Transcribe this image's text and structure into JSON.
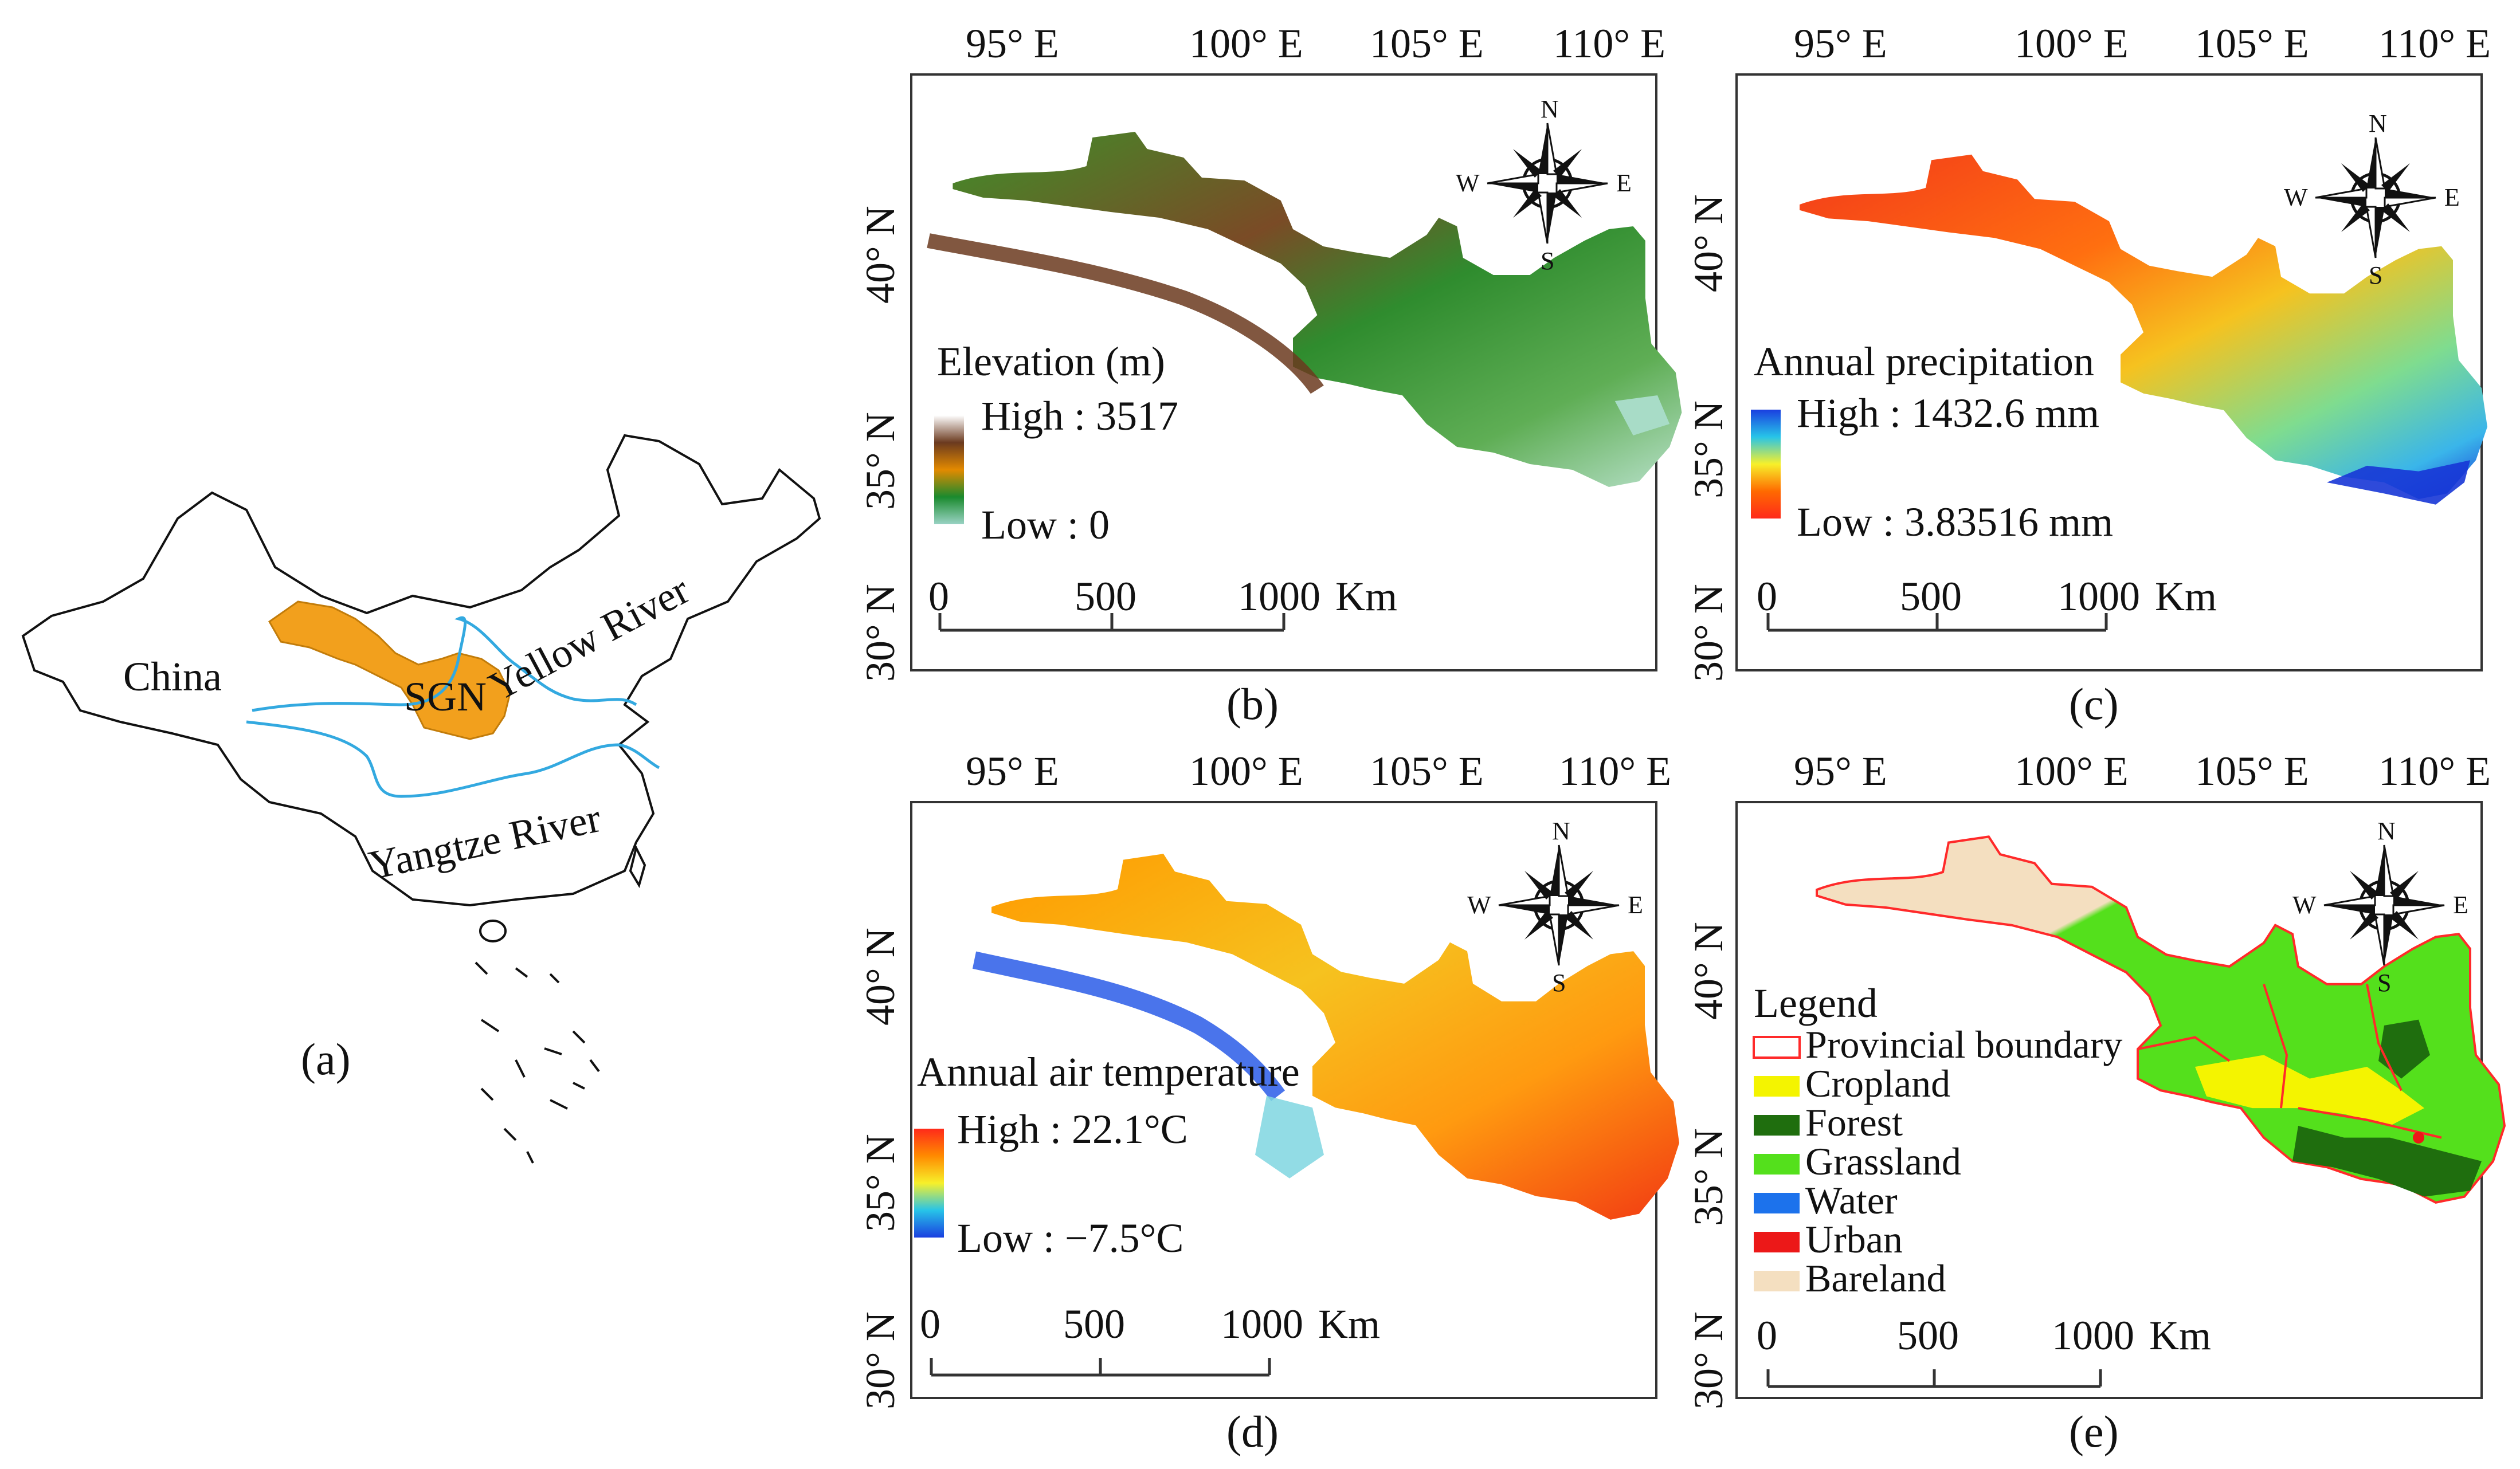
{
  "china_map": {
    "caption": "(a)",
    "country_label": "China",
    "region_label": "SGN",
    "yellow_river_label": "Yellow River",
    "yangtze_river_label": "Yangtze River",
    "colors": {
      "region": "#f2a01d",
      "river": "#33a9e0",
      "border": "#111111"
    }
  },
  "axes": {
    "lon_ticks": [
      "95° E",
      "100° E",
      "105° E",
      "110° E"
    ],
    "lat_ticks": [
      "40° N",
      "35° N",
      "30° N"
    ]
  },
  "compass": {
    "n": "N",
    "s": "S",
    "e": "E",
    "w": "W"
  },
  "scale_bar": {
    "labels": [
      "0",
      "500",
      "1000"
    ],
    "unit": "Km"
  },
  "panels": {
    "b": {
      "caption": "(b)",
      "legend_title": "Elevation (m)",
      "high_label": "High : 3517",
      "low_label": "Low : 0",
      "ramp_colors": [
        "#ffffff",
        "#6b3a1f",
        "#e38a00",
        "#1a8a2e",
        "#9ad3c4"
      ]
    },
    "c": {
      "caption": "(c)",
      "legend_title": "Annual precipitation",
      "high_label": "High : 1432.6 mm",
      "low_label": "Low : 3.83516 mm",
      "ramp_colors": [
        "#1a3fe0",
        "#27c4e8",
        "#f7f02a",
        "#ff6a00",
        "#ff2a1a"
      ]
    },
    "d": {
      "caption": "(d)",
      "legend_title": "Annual air temperature",
      "high_label": "High : 22.1°C",
      "low_label": "Low : −7.5°C",
      "ramp_colors": [
        "#ff2a1a",
        "#ff8a00",
        "#f7f02a",
        "#27c4e8",
        "#1a3fe0"
      ]
    },
    "e": {
      "caption": "(e)",
      "legend_title": "Legend",
      "classes": [
        {
          "label": "Provincial boundary",
          "color": "#ff2a2a"
        },
        {
          "label": "Cropland",
          "color": "#f4f400"
        },
        {
          "label": "Forest",
          "color": "#1f6e0e"
        },
        {
          "label": "Grassland",
          "color": "#54e01c"
        },
        {
          "label": "Water",
          "color": "#1c72ec"
        },
        {
          "label": "Urban",
          "color": "#ec1818"
        },
        {
          "label": "Bareland",
          "color": "#f4dfc0"
        }
      ]
    }
  }
}
